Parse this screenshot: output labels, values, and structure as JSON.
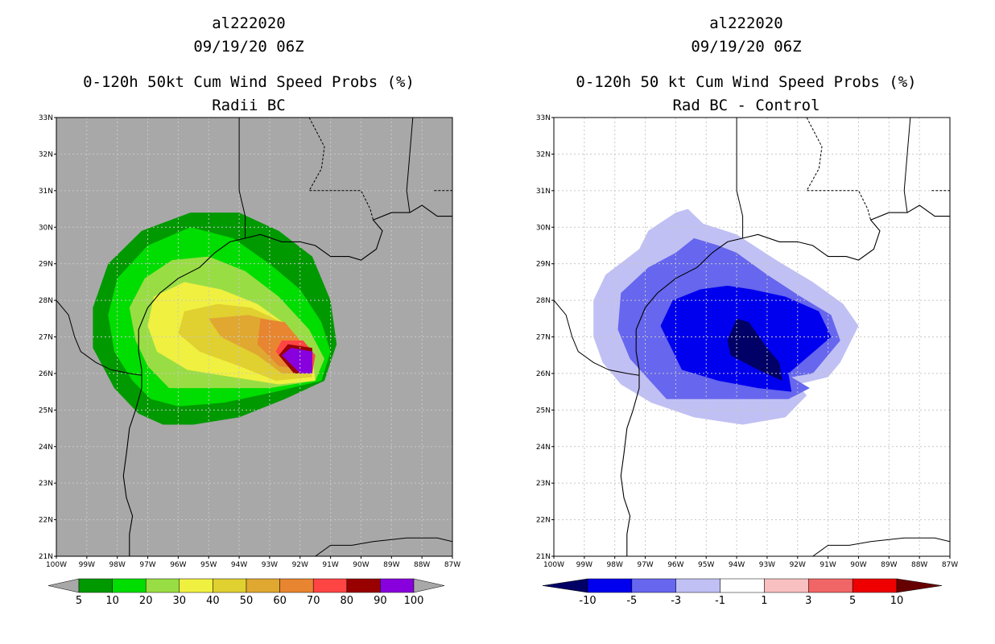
{
  "left_panel": {
    "storm_id": "al222020",
    "datetime": "09/19/20 06Z",
    "product_title": "0-120h 50kt Cum Wind Speed Probs (%)",
    "subtitle": "Radii BC",
    "colorbar": {
      "labels": [
        "5",
        "10",
        "20",
        "30",
        "40",
        "50",
        "60",
        "70",
        "80",
        "90",
        "100"
      ],
      "colors": [
        "#009900",
        "#00dd00",
        "#99dd44",
        "#f0f040",
        "#e0d030",
        "#e0a830",
        "#e88530",
        "#ff4444",
        "#990000",
        "#8800dd"
      ],
      "under_color": "#a8a8a8",
      "over_color": "#a8a8a8"
    },
    "background_color": "#a8a8a8"
  },
  "right_panel": {
    "storm_id": "al222020",
    "datetime": "09/19/20 06Z",
    "product_title": "0-120h 50 kt Cum Wind Speed Probs (%)",
    "subtitle": "Rad BC - Control",
    "colorbar": {
      "labels": [
        "-10",
        "-5",
        "-3",
        "-1",
        "1",
        "3",
        "5",
        "10"
      ],
      "colors": [
        "#0000ee",
        "#6666ee",
        "#c0c0f4",
        "#ffffff",
        "#f8c0c0",
        "#f06666",
        "#ee0000"
      ],
      "under_color": "#000066",
      "over_color": "#660000"
    },
    "background_color": "#ffffff"
  },
  "map_axes": {
    "lon_labels": [
      "100W",
      "99W",
      "98W",
      "97W",
      "96W",
      "95W",
      "94W",
      "93W",
      "92W",
      "91W",
      "90W",
      "89W",
      "88W",
      "87W"
    ],
    "lat_labels": [
      "21N",
      "22N",
      "23N",
      "24N",
      "25N",
      "26N",
      "27N",
      "28N",
      "29N",
      "30N",
      "31N",
      "32N",
      "33N"
    ],
    "lon_range": [
      -100,
      -87
    ],
    "lat_range": [
      21,
      33
    ]
  },
  "chart_data": [
    {
      "type": "heatmap",
      "title": "0-120h 50kt Cum Wind Speed Probs (%) - Radii BC",
      "variable": "cumulative probability of 50 kt winds (%)",
      "contour_levels": [
        5,
        10,
        20,
        30,
        40,
        50,
        60,
        70,
        80,
        90,
        100
      ],
      "max_value_region": {
        "lon": -91.8,
        "lat": 26.3,
        "value_range": "90-100"
      },
      "xlim": [
        -100,
        -87
      ],
      "ylim": [
        21,
        33
      ],
      "contours": [
        {
          "level": 5,
          "points": [
            [
              -96.5,
              24.6
            ],
            [
              -95.5,
              24.6
            ],
            [
              -94,
              24.8
            ],
            [
              -92.5,
              25.3
            ],
            [
              -91.2,
              25.8
            ],
            [
              -90.8,
              26.8
            ],
            [
              -91.0,
              28.0
            ],
            [
              -91.6,
              29.2
            ],
            [
              -92.7,
              29.9
            ],
            [
              -94.0,
              30.4
            ],
            [
              -95.6,
              30.4
            ],
            [
              -97.2,
              29.9
            ],
            [
              -98.3,
              29.0
            ],
            [
              -98.8,
              27.8
            ],
            [
              -98.8,
              26.7
            ],
            [
              -98.1,
              25.6
            ],
            [
              -97.3,
              24.9
            ]
          ]
        },
        {
          "level": 10,
          "points": [
            [
              -96.0,
              25.1
            ],
            [
              -94.5,
              25.2
            ],
            [
              -92.8,
              25.5
            ],
            [
              -91.3,
              25.8
            ],
            [
              -91.0,
              26.6
            ],
            [
              -91.3,
              27.4
            ],
            [
              -92.0,
              28.3
            ],
            [
              -93.0,
              29.0
            ],
            [
              -94.2,
              29.7
            ],
            [
              -95.6,
              30.0
            ],
            [
              -97.0,
              29.5
            ],
            [
              -98.0,
              28.6
            ],
            [
              -98.3,
              27.6
            ],
            [
              -98.1,
              26.6
            ],
            [
              -97.5,
              25.8
            ],
            [
              -96.9,
              25.3
            ]
          ]
        },
        {
          "level": 20,
          "points": [
            [
              -96.3,
              25.6
            ],
            [
              -94.8,
              25.6
            ],
            [
              -93.0,
              25.6
            ],
            [
              -91.5,
              25.8
            ],
            [
              -91.2,
              26.4
            ],
            [
              -91.7,
              27.2
            ],
            [
              -92.7,
              28.1
            ],
            [
              -93.8,
              28.8
            ],
            [
              -95.0,
              29.2
            ],
            [
              -96.2,
              29.1
            ],
            [
              -97.1,
              28.6
            ],
            [
              -97.6,
              27.8
            ],
            [
              -97.4,
              26.9
            ],
            [
              -97.0,
              26.2
            ]
          ]
        },
        {
          "level": 30,
          "points": [
            [
              -95.7,
              26.1
            ],
            [
              -94.2,
              25.9
            ],
            [
              -92.7,
              25.7
            ],
            [
              -91.5,
              25.8
            ],
            [
              -91.6,
              26.5
            ],
            [
              -92.4,
              27.3
            ],
            [
              -93.4,
              27.9
            ],
            [
              -94.6,
              28.3
            ],
            [
              -95.8,
              28.5
            ],
            [
              -96.8,
              28.1
            ],
            [
              -97.0,
              27.3
            ],
            [
              -96.7,
              26.6
            ]
          ]
        },
        {
          "level": 40,
          "points": [
            [
              -95.3,
              26.6
            ],
            [
              -94.0,
              26.2
            ],
            [
              -92.8,
              25.8
            ],
            [
              -91.6,
              25.9
            ],
            [
              -91.8,
              26.6
            ],
            [
              -92.6,
              27.4
            ],
            [
              -93.6,
              27.8
            ],
            [
              -94.7,
              27.9
            ],
            [
              -95.8,
              27.7
            ],
            [
              -96.0,
              27.1
            ]
          ]
        },
        {
          "level": 50,
          "points": [
            [
              -94.6,
              27.0
            ],
            [
              -93.4,
              26.5
            ],
            [
              -92.6,
              26.0
            ],
            [
              -91.7,
              26.0
            ],
            [
              -91.9,
              26.7
            ],
            [
              -92.7,
              27.4
            ],
            [
              -93.7,
              27.6
            ],
            [
              -95.0,
              27.5
            ]
          ]
        },
        {
          "level": 60,
          "points": [
            [
              -93.4,
              26.8
            ],
            [
              -92.7,
              26.2
            ],
            [
              -91.8,
              26.1
            ],
            [
              -91.9,
              26.8
            ],
            [
              -92.5,
              27.4
            ],
            [
              -93.3,
              27.5
            ]
          ]
        },
        {
          "level": 70,
          "points": [
            [
              -92.8,
              26.6
            ],
            [
              -92.3,
              26.1
            ],
            [
              -91.6,
              26.0
            ],
            [
              -91.5,
              26.5
            ],
            [
              -91.9,
              26.9
            ],
            [
              -92.6,
              26.9
            ]
          ]
        },
        {
          "level": 80,
          "points": [
            [
              -92.7,
              26.5
            ],
            [
              -92.2,
              26.0
            ],
            [
              -91.6,
              26.0
            ],
            [
              -91.6,
              26.7
            ],
            [
              -92.4,
              26.8
            ]
          ]
        },
        {
          "level": 90,
          "points": [
            [
              -92.6,
              26.5
            ],
            [
              -92.0,
              26.0
            ],
            [
              -91.6,
              26.0
            ],
            [
              -91.6,
              26.6
            ],
            [
              -92.3,
              26.7
            ]
          ]
        }
      ]
    },
    {
      "type": "heatmap",
      "title": "0-120h 50 kt Cum Wind Speed Probs (%) - Rad BC - Control",
      "variable": "difference in cumulative probability (%)",
      "contour_levels": [
        -10,
        -5,
        -3,
        -1,
        1,
        3,
        5,
        10
      ],
      "min_value_region": {
        "lon": -93.4,
        "lat": 26.6,
        "value": "< -10"
      },
      "xlim": [
        -100,
        -87
      ],
      "ylim": [
        21,
        33
      ],
      "contours": [
        {
          "level": -1,
          "points": [
            [
              -96.8,
              25.2
            ],
            [
              -95.4,
              24.8
            ],
            [
              -93.8,
              24.6
            ],
            [
              -92.4,
              24.8
            ],
            [
              -91.7,
              25.4
            ],
            [
              -92.0,
              25.7
            ],
            [
              -91.0,
              25.9
            ],
            [
              -90.6,
              26.3
            ],
            [
              -90.0,
              27.3
            ],
            [
              -90.5,
              27.9
            ],
            [
              -91.5,
              28.5
            ],
            [
              -92.7,
              29.1
            ],
            [
              -94.0,
              29.8
            ],
            [
              -95.1,
              30.1
            ],
            [
              -95.6,
              30.5
            ],
            [
              -96.0,
              30.4
            ],
            [
              -96.9,
              29.9
            ],
            [
              -97.2,
              29.4
            ],
            [
              -98.3,
              28.7
            ],
            [
              -98.7,
              28.0
            ],
            [
              -98.7,
              27.0
            ],
            [
              -98.4,
              26.3
            ],
            [
              -97.8,
              25.7
            ]
          ]
        },
        {
          "level": -3,
          "points": [
            [
              -96.3,
              25.3
            ],
            [
              -94.8,
              25.3
            ],
            [
              -93.3,
              25.3
            ],
            [
              -92.3,
              25.3
            ],
            [
              -91.6,
              25.6
            ],
            [
              -92.2,
              25.9
            ],
            [
              -91.5,
              26.0
            ],
            [
              -90.6,
              26.9
            ],
            [
              -90.9,
              27.6
            ],
            [
              -91.9,
              28.1
            ],
            [
              -93.0,
              28.7
            ],
            [
              -94.0,
              29.3
            ],
            [
              -94.6,
              29.5
            ],
            [
              -95.4,
              29.7
            ],
            [
              -96.0,
              29.3
            ],
            [
              -96.9,
              28.9
            ],
            [
              -97.8,
              28.2
            ],
            [
              -97.9,
              27.2
            ],
            [
              -97.5,
              26.4
            ]
          ]
        },
        {
          "level": -5,
          "points": [
            [
              -95.8,
              26.1
            ],
            [
              -94.6,
              25.8
            ],
            [
              -93.3,
              25.6
            ],
            [
              -92.2,
              25.5
            ],
            [
              -92.3,
              26.0
            ],
            [
              -91.6,
              26.5
            ],
            [
              -90.9,
              27.0
            ],
            [
              -91.3,
              27.7
            ],
            [
              -92.4,
              28.1
            ],
            [
              -93.5,
              28.3
            ],
            [
              -94.3,
              28.4
            ],
            [
              -95.2,
              28.3
            ],
            [
              -96.1,
              28.0
            ],
            [
              -96.5,
              27.3
            ]
          ]
        },
        {
          "level": -10,
          "points": [
            [
              -94.2,
              26.5
            ],
            [
              -93.3,
              26.1
            ],
            [
              -92.5,
              25.8
            ],
            [
              -92.6,
              26.3
            ],
            [
              -93.0,
              26.7
            ],
            [
              -93.6,
              27.4
            ],
            [
              -94.0,
              27.5
            ],
            [
              -94.3,
              26.9
            ]
          ]
        }
      ]
    }
  ]
}
